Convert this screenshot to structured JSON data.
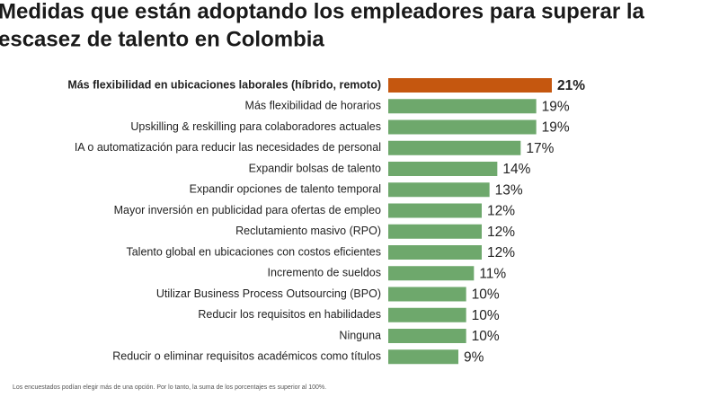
{
  "chart_data": {
    "type": "bar",
    "orientation": "horizontal",
    "title": [
      "Medidas que están adoptando los empleadores para superar la",
      "escasez de talento en Colombia"
    ],
    "categories": [
      "Más flexibilidad en ubicaciones  laborales (híbrido, remoto)",
      "Más flexibilidad de horarios",
      "Upskilling & reskilling para colaboradores actuales",
      "IA o automatización para reducir las necesidades de personal",
      "Expandir bolsas de talento",
      "Expandir opciones de talento temporal",
      "Mayor inversión en publicidad para ofertas de empleo",
      "Reclutamiento masivo (RPO)",
      "Talento global en ubicaciones con costos eficientes",
      "Incremento de sueldos",
      "Utilizar Business Process Outsourcing (BPO)",
      "Reducir los requisitos en habilidades",
      "Ninguna",
      "Reducir o eliminar requisitos académicos como títulos"
    ],
    "values": [
      21,
      19,
      19,
      17,
      14,
      13,
      12,
      12,
      12,
      11,
      10,
      10,
      10,
      9
    ],
    "value_labels": [
      "21%",
      "19%",
      "19%",
      "17%",
      "14%",
      "13%",
      "12%",
      "12%",
      "12%",
      "11%",
      "10%",
      "10%",
      "10%",
      "9%"
    ],
    "colors": [
      "#c5570f",
      "#6ea86c",
      "#6ea86c",
      "#6ea86c",
      "#6ea86c",
      "#6ea86c",
      "#6ea86c",
      "#6ea86c",
      "#6ea86c",
      "#6ea86c",
      "#6ea86c",
      "#6ea86c",
      "#6ea86c",
      "#6ea86c"
    ],
    "footnote": "Los encuestados podían elegir más de una opción. Por lo tanto, la suma de los porcentajes es superior al 100%."
  }
}
